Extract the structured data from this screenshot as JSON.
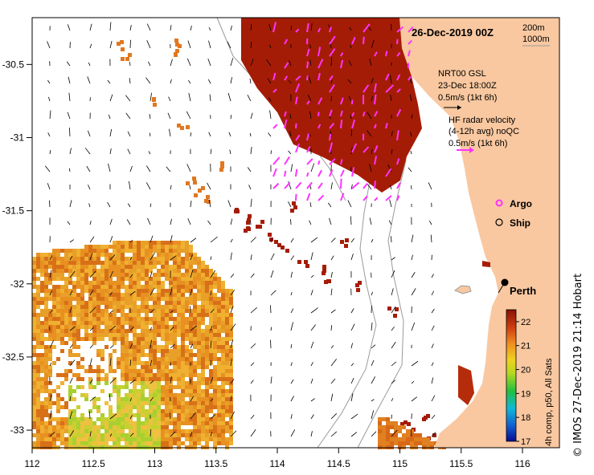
{
  "title": "26-Dec-2019 00Z",
  "isobaths": {
    "line1": "200m",
    "line2": "1000m"
  },
  "model_legend": {
    "line1": "NRT00 GSL",
    "line2": "23-Dec 18:00Z",
    "line3": "0.5m/s (1kt 6h)"
  },
  "radar_legend": {
    "line1": "HF radar velocity",
    "line2": "(4-12h avg) noQC",
    "line3": "0.5m/s (1kt 6h)"
  },
  "markers": {
    "argo": "Argo",
    "ship": "Ship"
  },
  "city": "Perth",
  "colorbar": {
    "label": "4h comp, p50, All Sats",
    "ticks": [
      "17",
      "18",
      "19",
      "20",
      "21",
      "22"
    ],
    "min": 17,
    "max": 22.5
  },
  "x_axis": {
    "ticks": [
      "112",
      "112.5",
      "113",
      "113.5",
      "114",
      "114.5",
      "115",
      "115.5",
      "116"
    ]
  },
  "y_axis": {
    "ticks": [
      "-30.5",
      "-31",
      "-31.5",
      "-32",
      "-32.5",
      "-33"
    ]
  },
  "credit": "© IMOS 27-Dec-2019 21:14 Hobart",
  "colors": {
    "land": "#f9c8a0",
    "warm": "#a51c06",
    "radar": "#ff33ff",
    "coast": "#9a9a9a"
  }
}
